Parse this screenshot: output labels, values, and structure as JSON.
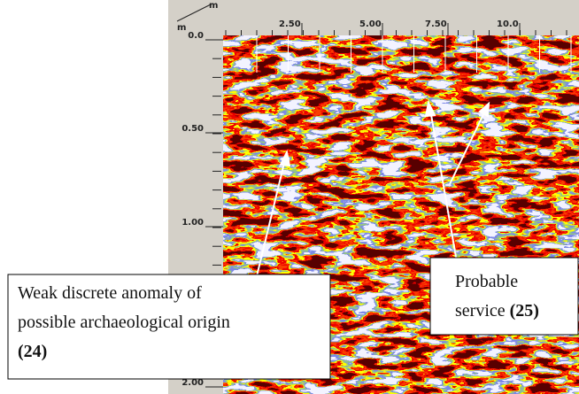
{
  "axes": {
    "corner_x_unit": "m",
    "corner_y_unit": "m",
    "x_labels": [
      "2.50",
      "5.00",
      "7.50",
      "10.0"
    ],
    "y_labels": [
      "0.0",
      "0.50",
      "1.00",
      "2.00"
    ]
  },
  "annotations": [
    {
      "lines": [
        "Weak discrete anomaly of",
        "possible archaeological origin"
      ],
      "ref": "(24)"
    },
    {
      "lines": [
        "Probable"
      ],
      "inline": "service",
      "ref": "(25)"
    }
  ]
}
